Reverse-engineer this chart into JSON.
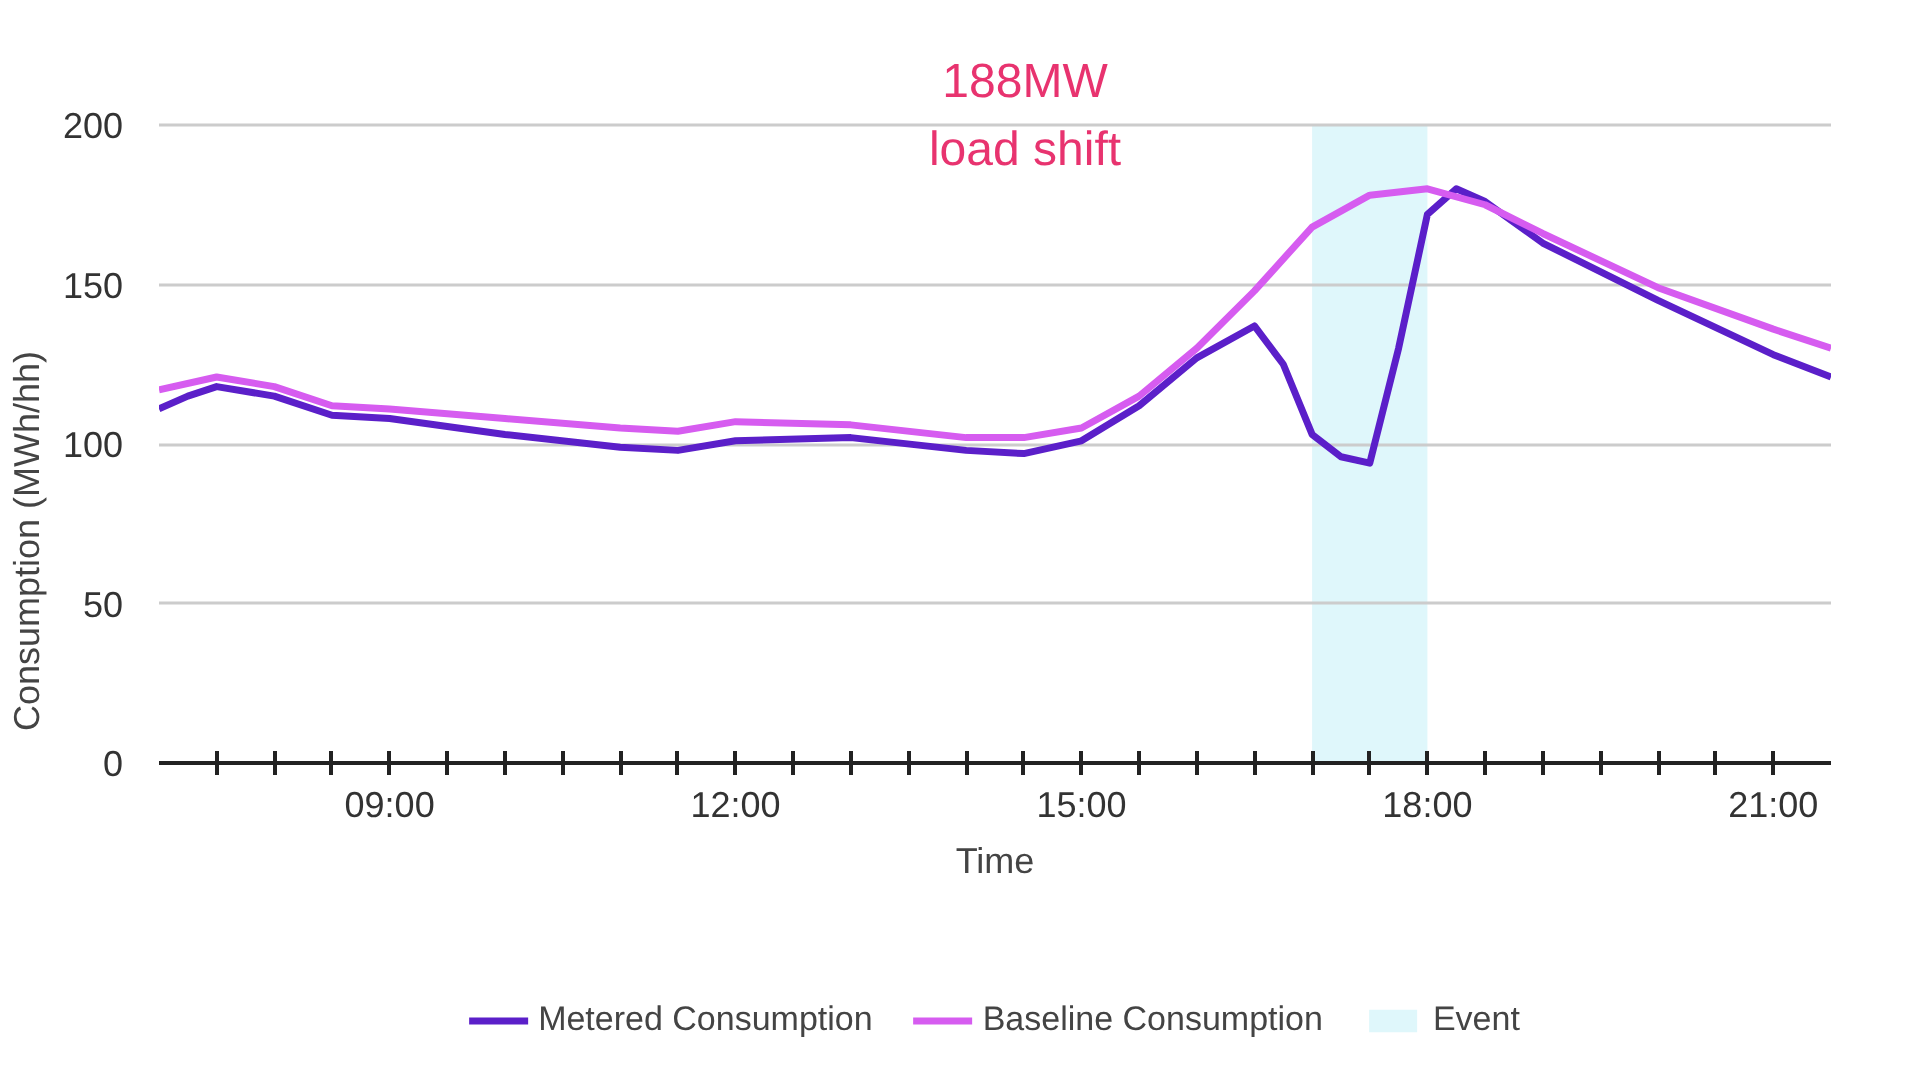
{
  "chart_data": {
    "type": "line",
    "xlabel": "Time",
    "ylabel": "Consumption (MWh/hh)",
    "xlim": [
      7,
      21.5
    ],
    "ylim": [
      0,
      200
    ],
    "yticks": [
      0,
      50,
      100,
      150,
      200
    ],
    "xticks": [
      {
        "value": 7.5,
        "label": null
      },
      {
        "value": 8,
        "label": null
      },
      {
        "value": 8.5,
        "label": null
      },
      {
        "value": 9,
        "label": "09:00"
      },
      {
        "value": 9.5,
        "label": null
      },
      {
        "value": 10,
        "label": null
      },
      {
        "value": 10.5,
        "label": null
      },
      {
        "value": 11,
        "label": null
      },
      {
        "value": 11.5,
        "label": null
      },
      {
        "value": 12,
        "label": "12:00"
      },
      {
        "value": 12.5,
        "label": null
      },
      {
        "value": 13,
        "label": null
      },
      {
        "value": 13.5,
        "label": null
      },
      {
        "value": 14,
        "label": null
      },
      {
        "value": 14.5,
        "label": null
      },
      {
        "value": 15,
        "label": "15:00"
      },
      {
        "value": 15.5,
        "label": null
      },
      {
        "value": 16,
        "label": null
      },
      {
        "value": 16.5,
        "label": null
      },
      {
        "value": 17,
        "label": null
      },
      {
        "value": 17.5,
        "label": null
      },
      {
        "value": 18,
        "label": "18:00"
      },
      {
        "value": 18.5,
        "label": null
      },
      {
        "value": 19,
        "label": null
      },
      {
        "value": 19.5,
        "label": null
      },
      {
        "value": 20,
        "label": null
      },
      {
        "value": 20.5,
        "label": null
      },
      {
        "value": 21,
        "label": "21:00"
      }
    ],
    "grid": "y",
    "legend": "bottom",
    "marker": "none",
    "line_style": "solid",
    "series": [
      {
        "name": "Metered Consumption",
        "color": "#5b1fc9",
        "x": [
          7,
          7.25,
          7.5,
          8,
          8.5,
          9,
          10,
          11,
          11.5,
          12,
          13,
          14,
          14.5,
          15,
          15.5,
          16,
          16.5,
          16.75,
          17,
          17.25,
          17.5,
          17.75,
          18,
          18.25,
          18.5,
          19,
          20,
          21,
          21.5
        ],
        "values": [
          111,
          115,
          118,
          115,
          109,
          108,
          103,
          99,
          98,
          101,
          102,
          98,
          97,
          101,
          112,
          127,
          137,
          125,
          103,
          96,
          94,
          130,
          172,
          180,
          176,
          163,
          145,
          128,
          121
        ]
      },
      {
        "name": "Baseline Consumption",
        "color": "#d65cf0",
        "x": [
          7,
          7.5,
          8,
          8.5,
          9,
          10,
          11,
          11.5,
          12,
          13,
          14,
          14.5,
          15,
          15.5,
          16,
          16.5,
          17,
          17.5,
          18,
          18.5,
          19,
          20,
          21,
          21.5
        ],
        "values": [
          117,
          121,
          118,
          112,
          111,
          108,
          105,
          104,
          107,
          106,
          102,
          102,
          105,
          115,
          130,
          148,
          168,
          178,
          180,
          175,
          166,
          149,
          136,
          130
        ]
      }
    ],
    "bands": [
      {
        "axis": "x",
        "from": 17,
        "to": 18,
        "label": "Event",
        "color": "#dff7fb"
      }
    ],
    "annotations": [
      "188MW\nload shift"
    ]
  }
}
